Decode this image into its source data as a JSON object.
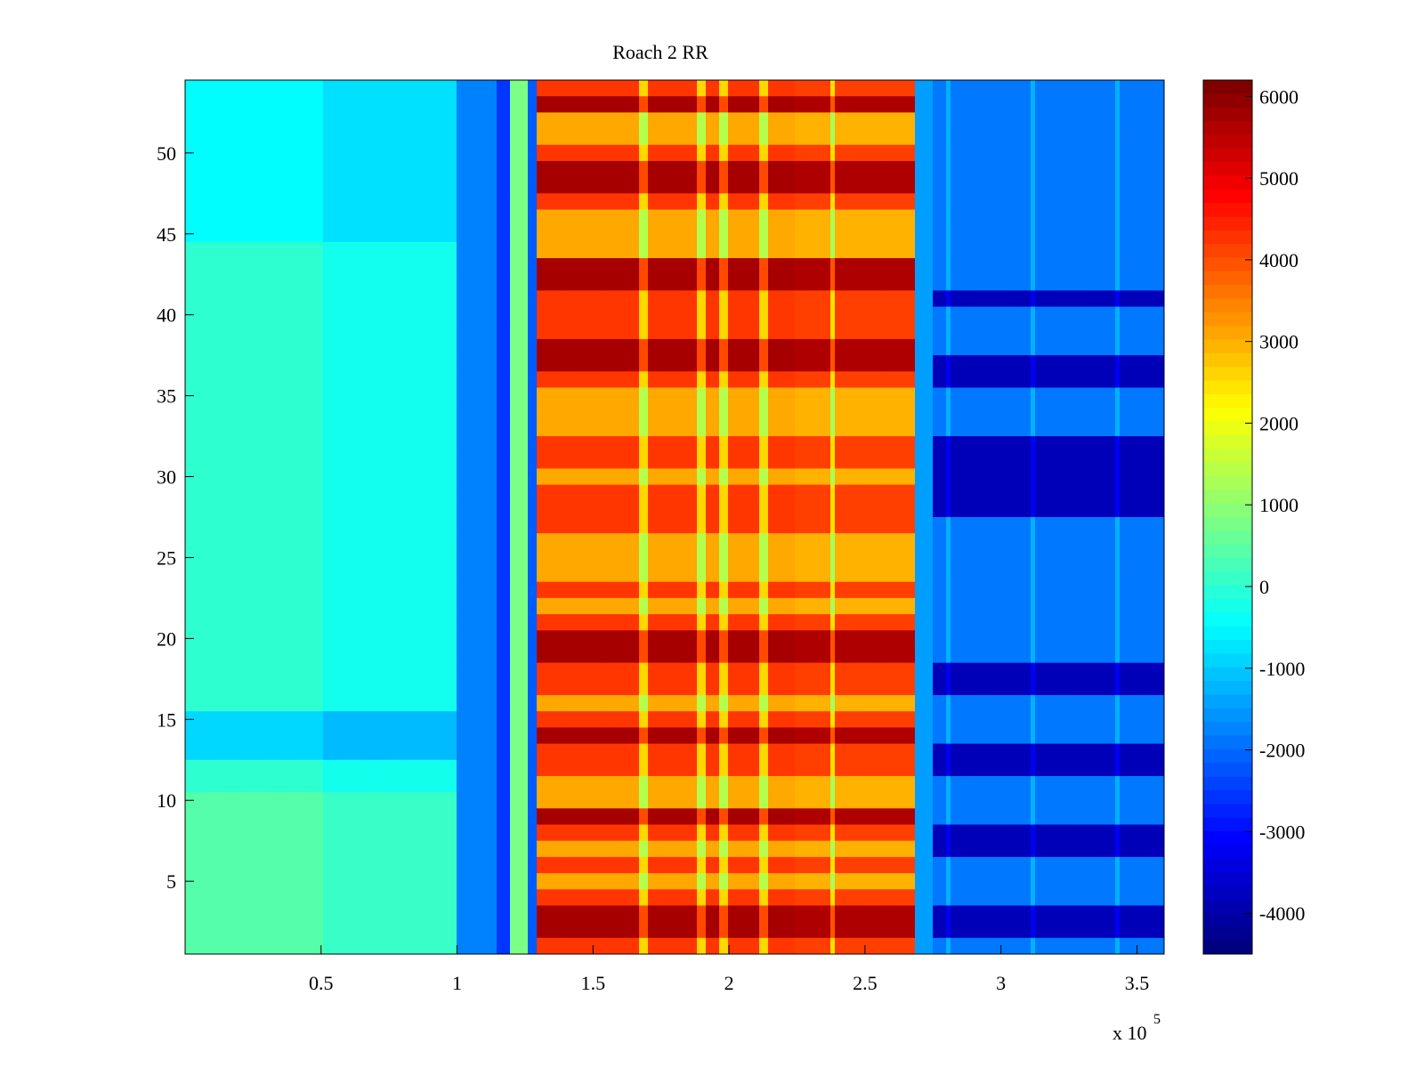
{
  "chart_data": {
    "type": "heatmap",
    "title": "Roach 2 RR",
    "xlabel": "",
    "ylabel": "",
    "colormap": "jet",
    "x_range": [
      0,
      360000
    ],
    "y_range": [
      0.5,
      54.5
    ],
    "rows": 54,
    "x_ticks": [
      {
        "value": 50000,
        "label": "0.5"
      },
      {
        "value": 100000,
        "label": "1"
      },
      {
        "value": 150000,
        "label": "1.5"
      },
      {
        "value": 200000,
        "label": "2"
      },
      {
        "value": 250000,
        "label": "2.5"
      },
      {
        "value": 300000,
        "label": "3"
      },
      {
        "value": 350000,
        "label": "3.5"
      }
    ],
    "x_exponent_label": "x 10",
    "x_exponent_power": "5",
    "y_ticks": [
      {
        "value": 5,
        "label": "5"
      },
      {
        "value": 10,
        "label": "10"
      },
      {
        "value": 15,
        "label": "15"
      },
      {
        "value": 20,
        "label": "20"
      },
      {
        "value": 25,
        "label": "25"
      },
      {
        "value": 30,
        "label": "30"
      },
      {
        "value": 35,
        "label": "35"
      },
      {
        "value": 40,
        "label": "40"
      },
      {
        "value": 45,
        "label": "45"
      },
      {
        "value": 50,
        "label": "50"
      }
    ],
    "colorbar": {
      "range": [
        -4500,
        6200
      ],
      "ticks": [
        {
          "value": 6000,
          "label": "6000"
        },
        {
          "value": 5000,
          "label": "5000"
        },
        {
          "value": 4000,
          "label": "4000"
        },
        {
          "value": 3000,
          "label": "3000"
        },
        {
          "value": 2000,
          "label": "2000"
        },
        {
          "value": 1000,
          "label": "1000"
        },
        {
          "value": 0,
          "label": "0"
        },
        {
          "value": -1000,
          "label": "-1000"
        },
        {
          "value": -2000,
          "label": "-2000"
        },
        {
          "value": -3000,
          "label": "-3000"
        },
        {
          "value": -4000,
          "label": "-4000"
        }
      ]
    },
    "column_profile": [
      {
        "x_start": 0,
        "x_end": 50000,
        "level": 0
      },
      {
        "x_start": 50000,
        "x_end": 100000,
        "level": -300
      },
      {
        "x_start": 100000,
        "x_end": 115000,
        "level": -1800
      },
      {
        "x_start": 115000,
        "x_end": 120000,
        "level": -2600
      },
      {
        "x_start": 120000,
        "x_end": 126000,
        "level": 800
      },
      {
        "x_start": 126000,
        "x_end": 130000,
        "level": -2200
      },
      {
        "x_start": 130000,
        "x_end": 175000,
        "level": 4300
      },
      {
        "x_start": 175000,
        "x_end": 225000,
        "level": 4300
      },
      {
        "x_start": 225000,
        "x_end": 268000,
        "level": 4200
      },
      {
        "x_start": 268000,
        "x_end": 275000,
        "level": -1500
      },
      {
        "x_start": 275000,
        "x_end": 360000,
        "level": -2200
      }
    ],
    "bright_vertical_bands_x": [
      168000,
      190000,
      198000,
      213000,
      238000
    ],
    "strong_rows": [
      2,
      3,
      9,
      14,
      19,
      20,
      37,
      38,
      42,
      43,
      48,
      49,
      53
    ],
    "weak_rows": [
      5,
      7,
      10,
      11,
      16,
      22,
      24,
      25,
      26,
      30,
      33,
      34,
      35,
      44,
      45,
      46,
      51,
      52
    ],
    "notes_right_region_dark_rows": [
      2,
      3,
      7,
      8,
      12,
      13,
      17,
      18,
      28,
      29,
      30,
      31,
      32,
      36,
      37,
      41
    ]
  }
}
